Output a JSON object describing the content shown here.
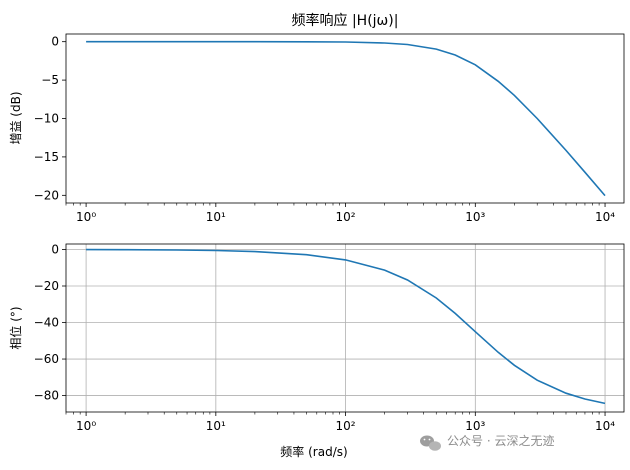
{
  "chart_data": [
    {
      "type": "line",
      "title": "频率响应 |H(jω)|",
      "xlabel": "",
      "ylabel": "增益 (dB)",
      "xscale": "log",
      "xlim": [
        0.7,
        14000
      ],
      "ylim": [
        -21,
        1
      ],
      "xticks": [
        1,
        10,
        100,
        1000,
        10000
      ],
      "xtick_labels": [
        "10⁰",
        "10¹",
        "10²",
        "10³",
        "10⁴"
      ],
      "yticks": [
        0,
        -5,
        -10,
        -15,
        -20
      ],
      "ytick_labels": [
        "0",
        "−5",
        "−10",
        "−15",
        "−20"
      ],
      "grid": false,
      "series_color": "#1f77b4",
      "x": [
        1,
        2,
        5,
        10,
        20,
        50,
        100,
        200,
        300,
        500,
        700,
        1000,
        1500,
        2000,
        3000,
        5000,
        7000,
        10000
      ],
      "y": [
        0,
        0,
        0,
        0,
        0,
        -0.01,
        -0.04,
        -0.17,
        -0.37,
        -0.97,
        -1.73,
        -3.01,
        -5.16,
        -6.99,
        -10.0,
        -14.15,
        -16.99,
        -20.04
      ]
    },
    {
      "type": "line",
      "title": "",
      "xlabel": "频率 (rad/s)",
      "ylabel": "相位 (°)",
      "xscale": "log",
      "xlim": [
        0.7,
        14000
      ],
      "ylim": [
        -89,
        3
      ],
      "xticks": [
        1,
        10,
        100,
        1000,
        10000
      ],
      "xtick_labels": [
        "10⁰",
        "10¹",
        "10²",
        "10³",
        "10⁴"
      ],
      "yticks": [
        0,
        -20,
        -40,
        -60,
        -80
      ],
      "ytick_labels": [
        "0",
        "−20",
        "−40",
        "−60",
        "−80"
      ],
      "grid": true,
      "series_color": "#1f77b4",
      "x": [
        1,
        2,
        5,
        10,
        20,
        50,
        100,
        200,
        300,
        500,
        700,
        1000,
        1500,
        2000,
        3000,
        5000,
        7000,
        10000
      ],
      "y": [
        -0.06,
        -0.11,
        -0.29,
        -0.57,
        -1.15,
        -2.86,
        -5.71,
        -11.31,
        -16.7,
        -26.57,
        -34.99,
        -45.0,
        -56.31,
        -63.43,
        -71.57,
        -78.69,
        -81.87,
        -84.29
      ]
    }
  ],
  "watermark": {
    "text": "公众号 · 云深之无迹",
    "icon": "wechat-icon"
  }
}
